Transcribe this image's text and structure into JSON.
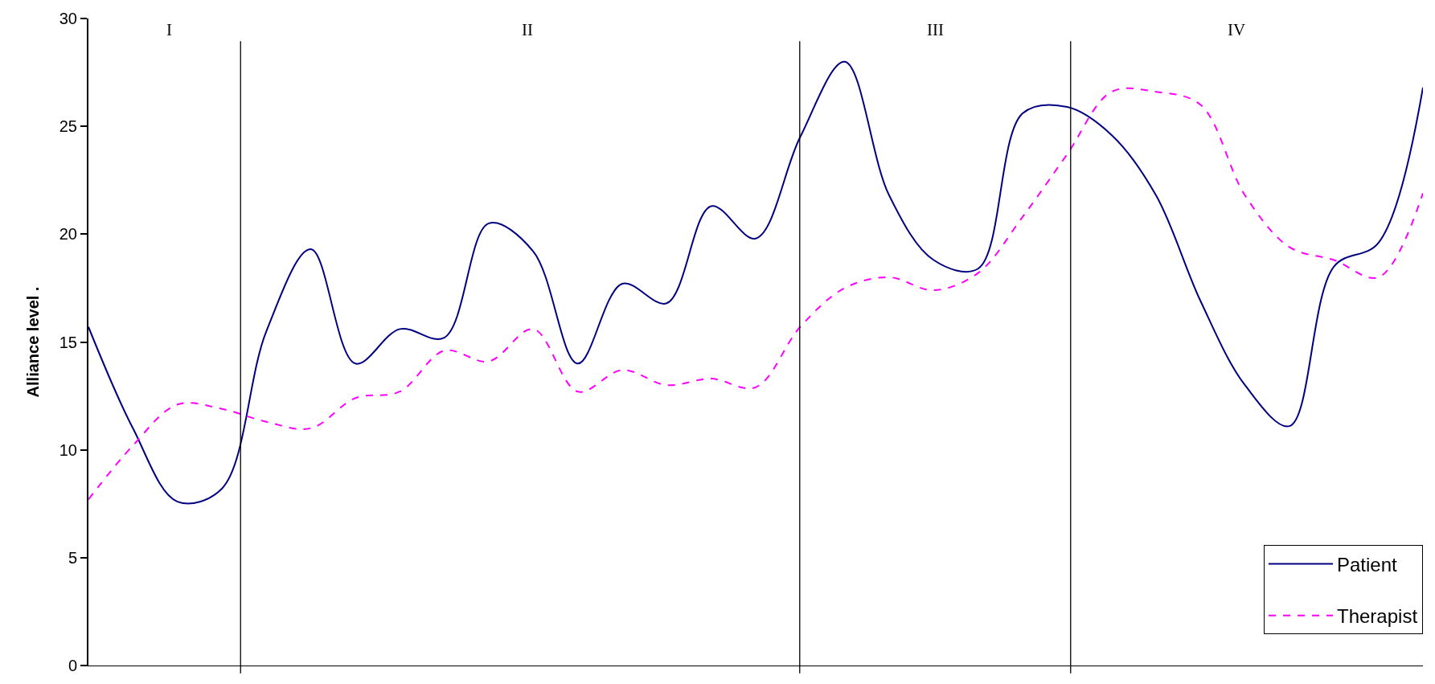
{
  "chart_data": {
    "type": "line",
    "ylabel": "Alliance level .",
    "categories": [
      null,
      null,
      null,
      null,
      null,
      null,
      null,
      null,
      null,
      null,
      null,
      null,
      null,
      null,
      null,
      null,
      null,
      null,
      null,
      null,
      null,
      null,
      null,
      null,
      null,
      null,
      null,
      null,
      null,
      null,
      null
    ],
    "series": [
      {
        "name": "Patient",
        "color": "#000080",
        "line_style": "solid",
        "values": [
          15.7,
          11,
          7.6,
          8.2,
          15.5,
          19.3,
          14.0,
          15.6,
          15.2,
          20.5,
          19.2,
          14.0,
          17.7,
          16.8,
          21.3,
          19.8,
          24.5,
          28.0,
          21.8,
          18.8,
          18.4,
          25.6,
          25.9,
          24.6,
          21.8,
          16.9,
          13.0,
          11.1,
          18.5,
          19.6,
          26.8
        ]
      },
      {
        "name": "Therapist",
        "color": "#ff00ff",
        "line_style": "dashed",
        "values": [
          7.7,
          10.2,
          12.1,
          11.9,
          11.3,
          11.0,
          12.4,
          12.7,
          14.6,
          14.1,
          15.6,
          12.7,
          13.7,
          13.0,
          13.3,
          12.9,
          15.7,
          17.5,
          18.0,
          17.4,
          18.2,
          20.8,
          23.7,
          26.6,
          26.6,
          26.0,
          21.8,
          19.4,
          18.8,
          18.0,
          21.9
        ]
      }
    ],
    "ylim": [
      0,
      30
    ],
    "yticks": [
      0,
      5,
      10,
      15,
      20,
      25,
      30
    ],
    "grid": false,
    "legend": "bottom right",
    "marker": "none",
    "annotations": [
      "I",
      "II",
      "III",
      "IV"
    ]
  }
}
